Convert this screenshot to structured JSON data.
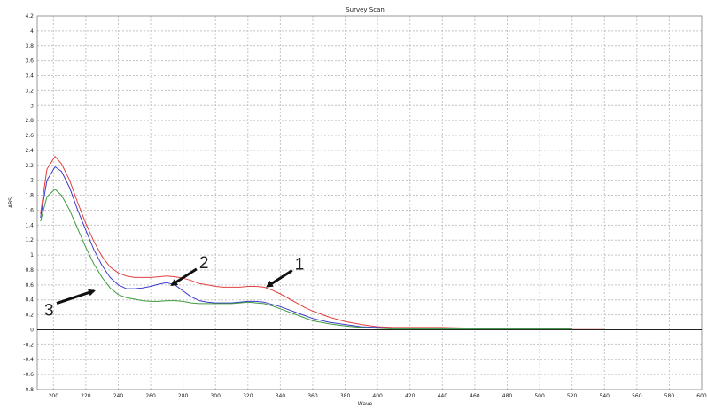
{
  "chart_data": {
    "type": "line",
    "title": "Survey Scan",
    "xlabel": "Wave",
    "ylabel": "ABS",
    "xlim": [
      190,
      600
    ],
    "ylim": [
      -0.8,
      4.2
    ],
    "x_ticks": [
      200,
      220,
      240,
      260,
      280,
      300,
      320,
      340,
      360,
      380,
      400,
      420,
      440,
      460,
      480,
      500,
      520,
      540,
      560,
      580,
      600
    ],
    "y_ticks": [
      -0.8,
      -0.6,
      -0.4,
      -0.2,
      0,
      0.2,
      0.4,
      0.6,
      0.8,
      1,
      1.2,
      1.4,
      1.6,
      1.8,
      2,
      2.2,
      2.4,
      2.6,
      2.8,
      3,
      3.2,
      3.4,
      3.6,
      3.8,
      4,
      4.2
    ],
    "y_tick_labels": [
      "-0.8",
      "-0.6",
      "-0.4",
      "-0.2",
      "0",
      "0.2",
      "0.4",
      "0.6",
      "0.8",
      "1",
      "1.2",
      "1.4",
      "1.6",
      "1.8",
      "2",
      "2.2",
      "2.4",
      "2.6",
      "2.8",
      "3",
      "3.2",
      "3.4",
      "3.6",
      "3.8",
      "4",
      "4.2"
    ],
    "grid": true,
    "legend": "none",
    "series": [
      {
        "color": "#e04040",
        "x": [
          192,
          196,
          201,
          205,
          210,
          215,
          220,
          225,
          230,
          235,
          240,
          245,
          250,
          255,
          260,
          265,
          270,
          275,
          280,
          285,
          290,
          295,
          300,
          305,
          310,
          315,
          320,
          325,
          330,
          335,
          340,
          345,
          350,
          355,
          360,
          370,
          380,
          390,
          400,
          410,
          420,
          430,
          440,
          460,
          480,
          500,
          520,
          540
        ],
        "y": [
          1.55,
          2.15,
          2.32,
          2.22,
          2.0,
          1.7,
          1.42,
          1.18,
          0.98,
          0.84,
          0.76,
          0.72,
          0.7,
          0.7,
          0.7,
          0.71,
          0.72,
          0.71,
          0.69,
          0.66,
          0.62,
          0.6,
          0.58,
          0.57,
          0.57,
          0.57,
          0.58,
          0.58,
          0.57,
          0.53,
          0.48,
          0.42,
          0.36,
          0.3,
          0.25,
          0.17,
          0.11,
          0.07,
          0.04,
          0.03,
          0.03,
          0.03,
          0.03,
          0.02,
          0.02,
          0.02,
          0.02,
          0.02
        ]
      },
      {
        "color": "#3a3acc",
        "x": [
          192,
          196,
          201,
          205,
          210,
          215,
          220,
          225,
          230,
          235,
          240,
          245,
          250,
          255,
          260,
          265,
          270,
          275,
          280,
          285,
          290,
          295,
          300,
          305,
          310,
          315,
          320,
          325,
          330,
          335,
          340,
          345,
          350,
          355,
          360,
          370,
          380,
          390,
          400,
          410,
          420,
          430,
          440,
          460,
          480,
          500,
          520
        ],
        "y": [
          1.5,
          2.0,
          2.18,
          2.12,
          1.9,
          1.6,
          1.33,
          1.07,
          0.86,
          0.7,
          0.6,
          0.55,
          0.55,
          0.56,
          0.58,
          0.61,
          0.63,
          0.6,
          0.52,
          0.44,
          0.39,
          0.37,
          0.36,
          0.36,
          0.36,
          0.37,
          0.38,
          0.38,
          0.37,
          0.34,
          0.31,
          0.27,
          0.23,
          0.19,
          0.15,
          0.1,
          0.07,
          0.04,
          0.03,
          0.02,
          0.02,
          0.02,
          0.02,
          0.02,
          0.02,
          0.02,
          0.02
        ]
      },
      {
        "color": "#3f9a3f",
        "x": [
          192,
          196,
          201,
          205,
          210,
          215,
          220,
          225,
          230,
          235,
          240,
          245,
          250,
          255,
          260,
          265,
          270,
          275,
          280,
          285,
          290,
          295,
          300,
          305,
          310,
          315,
          320,
          325,
          330,
          335,
          340,
          345,
          350,
          355,
          360,
          370,
          380,
          390,
          400,
          410,
          420,
          430,
          440,
          460,
          480,
          500,
          520
        ],
        "y": [
          1.45,
          1.78,
          1.88,
          1.8,
          1.6,
          1.35,
          1.1,
          0.88,
          0.7,
          0.56,
          0.47,
          0.43,
          0.41,
          0.39,
          0.38,
          0.38,
          0.39,
          0.39,
          0.38,
          0.36,
          0.35,
          0.35,
          0.35,
          0.35,
          0.35,
          0.36,
          0.37,
          0.36,
          0.35,
          0.32,
          0.28,
          0.24,
          0.2,
          0.16,
          0.12,
          0.08,
          0.05,
          0.03,
          0.02,
          0.01,
          0.01,
          0.01,
          0.01,
          0.01,
          0.01,
          0.01,
          0.01
        ]
      }
    ],
    "baseline_y": 0,
    "annotations": [
      {
        "text": "1",
        "arrow_to": [
          332,
          0.58
        ]
      },
      {
        "text": "2",
        "arrow_to": [
          273,
          0.6
        ]
      },
      {
        "text": "3",
        "arrow_to": [
          225,
          0.52
        ]
      }
    ]
  }
}
